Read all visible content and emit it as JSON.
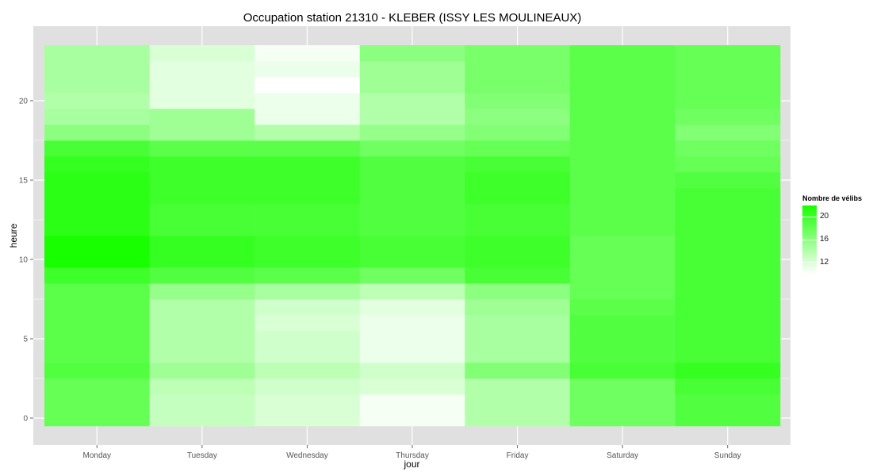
{
  "chart_data": {
    "type": "heatmap",
    "title": "Occupation station 21310 - KLEBER (ISSY LES MOULINEAUX)",
    "xlabel": "jour",
    "ylabel": "heure",
    "x_categories": [
      "Monday",
      "Tuesday",
      "Wednesday",
      "Thursday",
      "Friday",
      "Saturday",
      "Sunday"
    ],
    "y_hours": [
      0,
      1,
      2,
      3,
      4,
      5,
      6,
      7,
      8,
      9,
      10,
      11,
      12,
      13,
      14,
      15,
      16,
      17,
      18,
      19,
      20,
      21,
      22,
      23
    ],
    "y_ticks": [
      0,
      5,
      10,
      15,
      20
    ],
    "ylim": [
      -0.5,
      23.5
    ],
    "legend": {
      "title": "Nombre de vélibs",
      "ticks": [
        20,
        16,
        12
      ],
      "color_low": "#ffffff",
      "color_high": "#18ff00",
      "range": [
        10,
        22
      ]
    },
    "grid": true,
    "background_color": "#e0e0e0",
    "values": [
      [
        18,
        13,
        12,
        10.5,
        14,
        17.5,
        19
      ],
      [
        18,
        13,
        12,
        10.5,
        14,
        17.5,
        19
      ],
      [
        18,
        13.5,
        12.5,
        12,
        14,
        17.5,
        19.5
      ],
      [
        19,
        15,
        13.5,
        12.5,
        16.5,
        19.5,
        20.5
      ],
      [
        18.5,
        14,
        12.5,
        11,
        14.5,
        19,
        19.5
      ],
      [
        18.5,
        14,
        12.5,
        11,
        14.5,
        19,
        19.5
      ],
      [
        18.5,
        14,
        12,
        11,
        14.5,
        19,
        19.5
      ],
      [
        18.5,
        14,
        12.5,
        11.5,
        15,
        18.5,
        19.5
      ],
      [
        18.5,
        15.5,
        14.5,
        13.5,
        16,
        18,
        19.5
      ],
      [
        20,
        19,
        18.5,
        17.5,
        19.5,
        18,
        19.5
      ],
      [
        22,
        20.5,
        20,
        19.5,
        20,
        18,
        19.5
      ],
      [
        22,
        20.5,
        20,
        19.5,
        20,
        18,
        19.5
      ],
      [
        21,
        19.5,
        19.5,
        19,
        19.5,
        18.5,
        19.5
      ],
      [
        21,
        19.5,
        19.5,
        19,
        19.5,
        18.5,
        19.5
      ],
      [
        21,
        20,
        20,
        19,
        20,
        18.5,
        19.5
      ],
      [
        21,
        20,
        20,
        19,
        20,
        18.5,
        19
      ],
      [
        20.5,
        20,
        20,
        19,
        19.5,
        18.5,
        18
      ],
      [
        19.5,
        18.5,
        18.5,
        17.5,
        18,
        18.5,
        17.5
      ],
      [
        16,
        15,
        14,
        15.5,
        16.5,
        18.5,
        16.5
      ],
      [
        14.5,
        15,
        11,
        14,
        16,
        18.5,
        17.5
      ],
      [
        14,
        11.5,
        11,
        14,
        16.5,
        18.5,
        18
      ],
      [
        14.5,
        11.5,
        10,
        15,
        17,
        18.5,
        18
      ],
      [
        14.5,
        11.5,
        11,
        15,
        17,
        18.5,
        18
      ],
      [
        14.5,
        12,
        10.5,
        16,
        17,
        18.5,
        18
      ]
    ]
  }
}
